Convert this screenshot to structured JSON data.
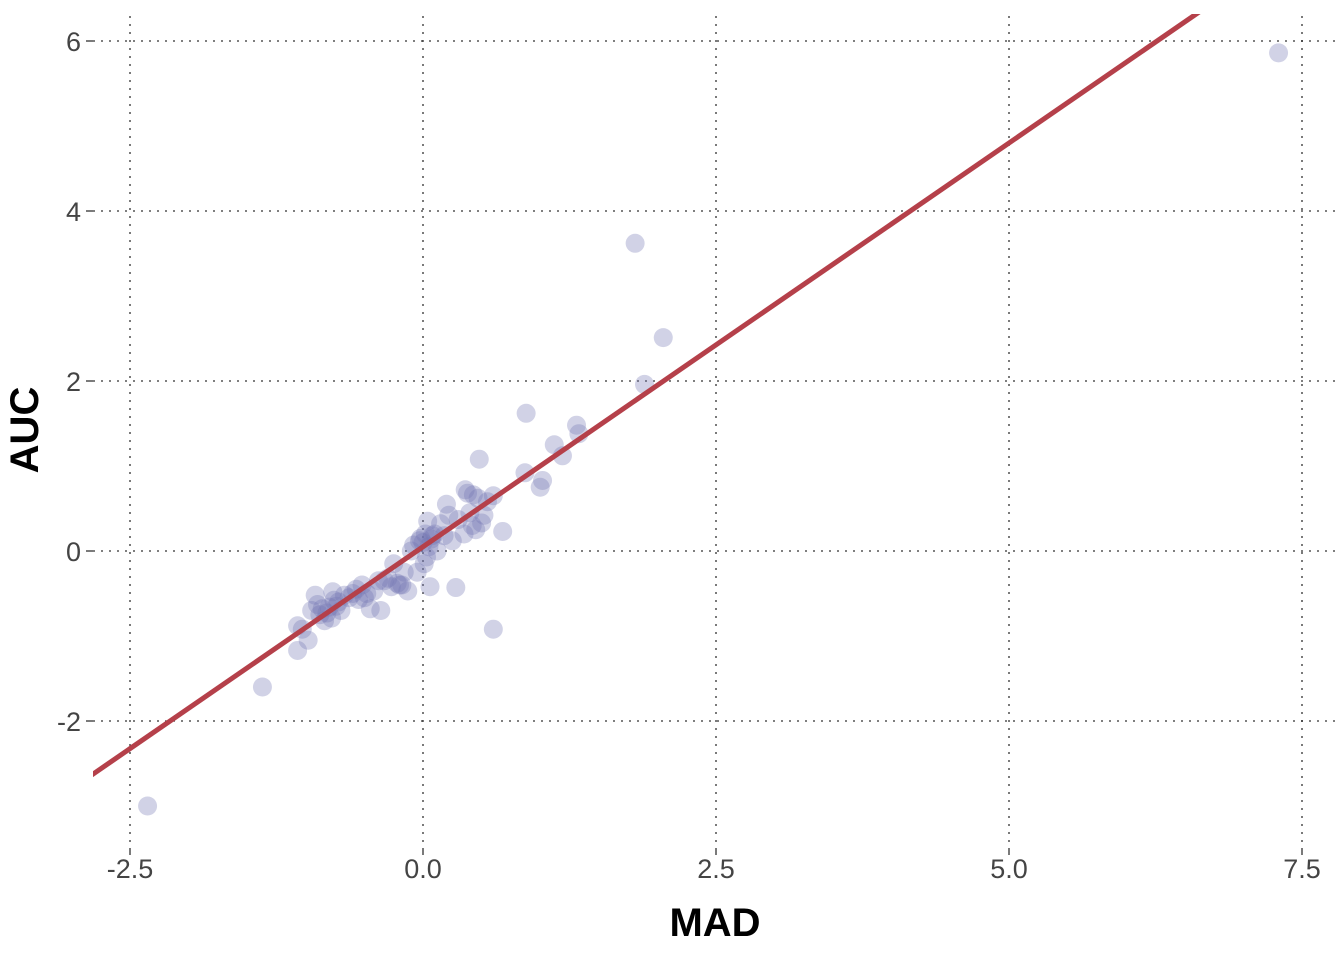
{
  "chart_data": {
    "type": "scatter",
    "title": "",
    "xlabel": "MAD",
    "ylabel": "AUC",
    "xlim": [
      -2.85,
      7.8
    ],
    "ylim": [
      -3.45,
      6.3
    ],
    "x_ticks": [
      -2.5,
      0.0,
      2.5,
      5.0,
      7.5
    ],
    "x_tick_labels": [
      "-2.5",
      "0.0",
      "2.5",
      "5.0",
      "7.5"
    ],
    "y_ticks": [
      -2,
      0,
      2,
      4,
      6
    ],
    "y_tick_labels": [
      "-2",
      "0",
      "2",
      "4",
      "6"
    ],
    "grid": true,
    "legend": "none",
    "colors": {
      "points": "#7377b3",
      "fit_line": "#b5404a"
    },
    "fit_line": {
      "slope": 0.95,
      "intercept": 0.05,
      "x_range": [
        -2.85,
        7.8
      ]
    },
    "series": [
      {
        "points": [
          [
            -2.35,
            -3.0
          ],
          [
            -1.37,
            -1.6
          ],
          [
            -1.07,
            -1.17
          ],
          [
            -1.07,
            -0.88
          ],
          [
            -1.03,
            -0.92
          ],
          [
            -0.98,
            -1.05
          ],
          [
            -0.95,
            -0.7
          ],
          [
            -0.92,
            -0.52
          ],
          [
            -0.9,
            -0.63
          ],
          [
            -0.88,
            -0.75
          ],
          [
            -0.86,
            -0.68
          ],
          [
            -0.84,
            -0.82
          ],
          [
            -0.82,
            -0.73
          ],
          [
            -0.8,
            -0.66
          ],
          [
            -0.78,
            -0.79
          ],
          [
            -0.77,
            -0.48
          ],
          [
            -0.76,
            -0.58
          ],
          [
            -0.74,
            -0.65
          ],
          [
            -0.72,
            -0.6
          ],
          [
            -0.7,
            -0.7
          ],
          [
            -0.67,
            -0.52
          ],
          [
            -0.63,
            -0.55
          ],
          [
            -0.6,
            -0.5
          ],
          [
            -0.57,
            -0.45
          ],
          [
            -0.55,
            -0.57
          ],
          [
            -0.52,
            -0.4
          ],
          [
            -0.5,
            -0.55
          ],
          [
            -0.48,
            -0.5
          ],
          [
            -0.45,
            -0.68
          ],
          [
            -0.42,
            -0.47
          ],
          [
            -0.38,
            -0.35
          ],
          [
            -0.36,
            -0.7
          ],
          [
            -0.33,
            -0.35
          ],
          [
            -0.3,
            -0.32
          ],
          [
            -0.27,
            -0.42
          ],
          [
            -0.25,
            -0.15
          ],
          [
            -0.22,
            -0.38
          ],
          [
            -0.2,
            -0.4
          ],
          [
            -0.18,
            -0.4
          ],
          [
            -0.16,
            -0.25
          ],
          [
            -0.13,
            -0.47
          ],
          [
            -0.1,
            0.0
          ],
          [
            -0.08,
            0.07
          ],
          [
            -0.05,
            -0.25
          ],
          [
            -0.03,
            0.12
          ],
          [
            -0.02,
            0.15
          ],
          [
            0.0,
            0.1
          ],
          [
            0.01,
            -0.15
          ],
          [
            0.02,
            0.2
          ],
          [
            0.03,
            -0.07
          ],
          [
            0.04,
            0.35
          ],
          [
            0.05,
            0.05
          ],
          [
            0.06,
            -0.42
          ],
          [
            0.07,
            0.14
          ],
          [
            0.08,
            0.18
          ],
          [
            0.1,
            0.2
          ],
          [
            0.12,
            0.0
          ],
          [
            0.15,
            0.32
          ],
          [
            0.18,
            0.18
          ],
          [
            0.2,
            0.55
          ],
          [
            0.22,
            0.42
          ],
          [
            0.25,
            0.12
          ],
          [
            0.28,
            -0.43
          ],
          [
            0.3,
            0.37
          ],
          [
            0.35,
            0.2
          ],
          [
            0.36,
            0.72
          ],
          [
            0.38,
            0.68
          ],
          [
            0.4,
            0.45
          ],
          [
            0.42,
            0.3
          ],
          [
            0.43,
            0.66
          ],
          [
            0.45,
            0.25
          ],
          [
            0.47,
            0.62
          ],
          [
            0.48,
            1.08
          ],
          [
            0.5,
            0.33
          ],
          [
            0.52,
            0.42
          ],
          [
            0.55,
            0.58
          ],
          [
            0.6,
            0.65
          ],
          [
            0.6,
            -0.92
          ],
          [
            0.68,
            0.23
          ],
          [
            0.87,
            0.92
          ],
          [
            0.88,
            1.62
          ],
          [
            1.0,
            0.75
          ],
          [
            1.02,
            0.83
          ],
          [
            1.12,
            1.25
          ],
          [
            1.19,
            1.12
          ],
          [
            1.31,
            1.48
          ],
          [
            1.33,
            1.38
          ],
          [
            1.81,
            3.62
          ],
          [
            1.89,
            1.96
          ],
          [
            2.05,
            2.51
          ],
          [
            7.3,
            5.86
          ]
        ]
      }
    ]
  }
}
